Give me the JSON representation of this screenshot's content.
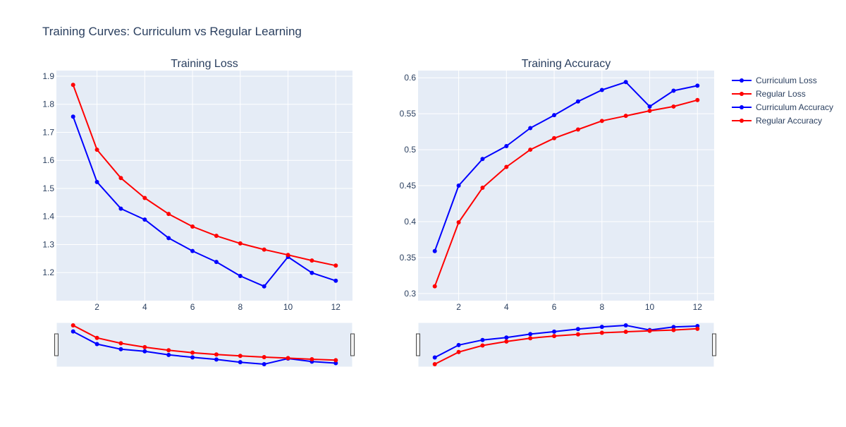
{
  "figure": {
    "title": "Training Curves: Curriculum vs Regular Learning",
    "plot_bg": "#e5ecf6",
    "grid_color": "#ffffff",
    "text_color": "#2a3f5f"
  },
  "legend": {
    "placement": "right",
    "items": [
      {
        "label": "Curriculum Loss",
        "color": "#0000ff"
      },
      {
        "label": "Regular Loss",
        "color": "#ff0000"
      },
      {
        "label": "Curriculum Accuracy",
        "color": "#0000ff"
      },
      {
        "label": "Regular Accuracy",
        "color": "#ff0000"
      }
    ]
  },
  "chart_data": [
    {
      "type": "line",
      "title": "Training Loss",
      "xlabel": "",
      "ylabel": "",
      "x": [
        1,
        2,
        3,
        4,
        5,
        6,
        7,
        8,
        9,
        10,
        11,
        12
      ],
      "xlim": [
        0.3,
        12.7
      ],
      "ylim": [
        1.1,
        1.92
      ],
      "xticks": [
        2,
        4,
        6,
        8,
        10,
        12
      ],
      "yticks": [
        1.2,
        1.3,
        1.4,
        1.5,
        1.6,
        1.7,
        1.8,
        1.9
      ],
      "grid": true,
      "rangeslider": true,
      "series": [
        {
          "name": "Curriculum Loss",
          "color": "#0000ff",
          "values": [
            1.756,
            1.523,
            1.428,
            1.389,
            1.323,
            1.277,
            1.238,
            1.188,
            1.151,
            1.256,
            1.199,
            1.171
          ]
        },
        {
          "name": "Regular Loss",
          "color": "#ff0000",
          "values": [
            1.869,
            1.638,
            1.537,
            1.466,
            1.409,
            1.364,
            1.331,
            1.304,
            1.282,
            1.263,
            1.243,
            1.225
          ]
        }
      ]
    },
    {
      "type": "line",
      "title": "Training Accuracy",
      "xlabel": "",
      "ylabel": "",
      "x": [
        1,
        2,
        3,
        4,
        5,
        6,
        7,
        8,
        9,
        10,
        11,
        12
      ],
      "xlim": [
        0.3,
        12.7
      ],
      "ylim": [
        0.29,
        0.61
      ],
      "xticks": [
        2,
        4,
        6,
        8,
        10,
        12
      ],
      "yticks": [
        0.3,
        0.35,
        0.4,
        0.45,
        0.5,
        0.55,
        0.6
      ],
      "ytick_labels": [
        "0.3",
        "0.35",
        "0.4",
        "0.45",
        "0.5",
        "0.55",
        "0.6"
      ],
      "grid": true,
      "rangeslider": true,
      "series": [
        {
          "name": "Curriculum Accuracy",
          "color": "#0000ff",
          "values": [
            0.359,
            0.45,
            0.487,
            0.505,
            0.53,
            0.548,
            0.567,
            0.583,
            0.594,
            0.56,
            0.582,
            0.589
          ]
        },
        {
          "name": "Regular Accuracy",
          "color": "#ff0000",
          "values": [
            0.31,
            0.399,
            0.447,
            0.476,
            0.5,
            0.516,
            0.528,
            0.54,
            0.547,
            0.554,
            0.56,
            0.569
          ]
        }
      ]
    }
  ]
}
